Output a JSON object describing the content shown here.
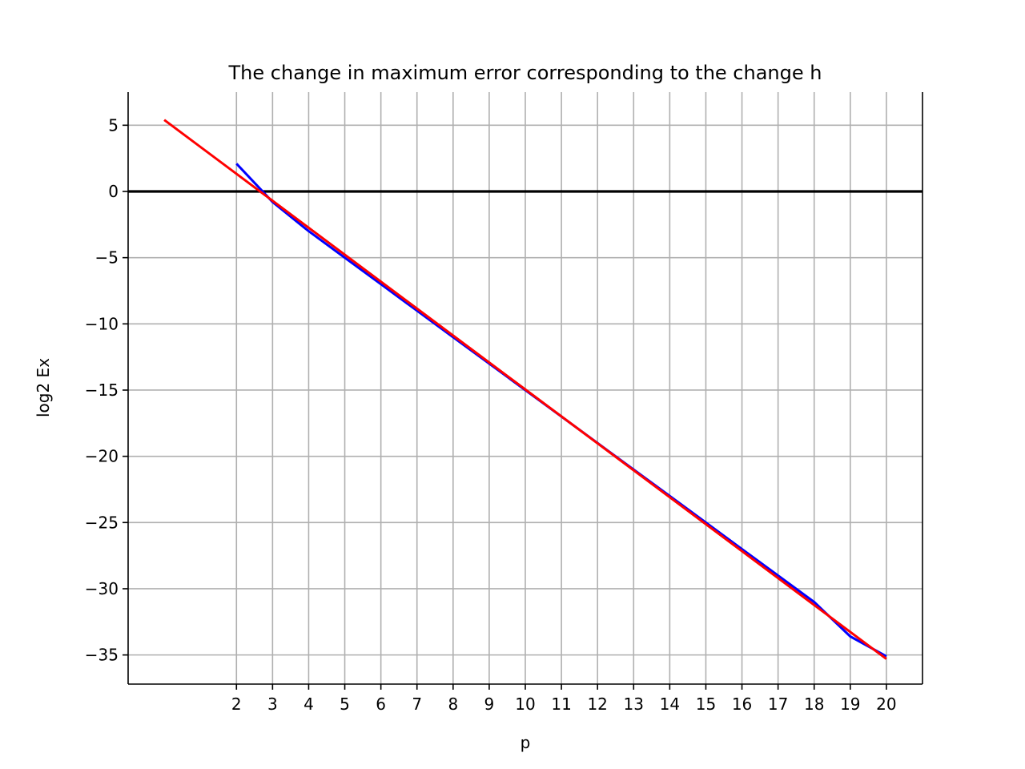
{
  "chart_data": {
    "type": "line",
    "title": "The change in maximum error corresponding to the change h",
    "xlabel": "p",
    "ylabel": "log2 Ex",
    "xlim": [
      -1.0,
      21.0
    ],
    "ylim": [
      -37.2,
      7.5
    ],
    "xticks": [
      2,
      3,
      4,
      5,
      6,
      7,
      8,
      9,
      10,
      11,
      12,
      13,
      14,
      15,
      16,
      17,
      18,
      19,
      20
    ],
    "yticks": [
      5,
      0,
      -5,
      -10,
      -15,
      -20,
      -25,
      -30,
      -35
    ],
    "ytick_labels": [
      "5",
      "0",
      "−5",
      "−10",
      "−15",
      "−20",
      "−25",
      "−30",
      "−35"
    ],
    "grid": true,
    "legend": "none",
    "series": [
      {
        "color": "#0000ff",
        "x": [
          2,
          3,
          4,
          5,
          6,
          7,
          8,
          9,
          10,
          11,
          12,
          13,
          14,
          15,
          16,
          17,
          18,
          19,
          20
        ],
        "y": [
          2.1,
          -0.8,
          -3.0,
          -5.0,
          -7.0,
          -9.0,
          -11.0,
          -13.0,
          -15.0,
          -17.0,
          -19.0,
          -21.0,
          -23.0,
          -25.0,
          -27.0,
          -29.0,
          -31.0,
          -33.6,
          -35.1
        ]
      },
      {
        "color": "#ff0000",
        "x": [
          0,
          20
        ],
        "y": [
          5.4,
          -35.3
        ]
      }
    ],
    "reference_line": {
      "y": 0,
      "color": "#000000"
    }
  }
}
